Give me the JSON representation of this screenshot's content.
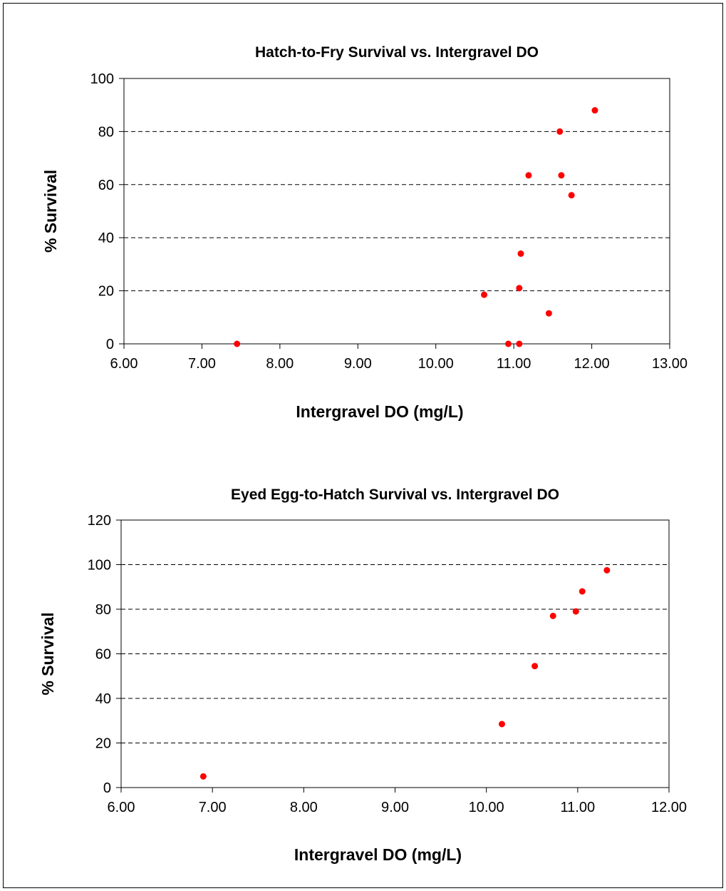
{
  "chart_data": [
    {
      "type": "scatter",
      "title": "Hatch-to-Fry Survival vs. Intergravel DO",
      "xlabel": "Intergravel DO (mg/L)",
      "ylabel": "% Survival",
      "xlim": [
        6.0,
        13.0
      ],
      "ylim": [
        0,
        100
      ],
      "xticks": [
        6,
        7,
        8,
        9,
        10,
        11,
        12,
        13
      ],
      "yticks": [
        0,
        20,
        40,
        60,
        80,
        100
      ],
      "xtick_labels": [
        "6.00",
        "7.00",
        "8.00",
        "9.00",
        "10.00",
        "11.00",
        "12.00",
        "13.00"
      ],
      "ytick_labels": [
        "0",
        "20",
        "40",
        "60",
        "80",
        "100"
      ],
      "grid": "horizontal dashed",
      "marker_color": "#ff0000",
      "points": [
        {
          "x": 7.45,
          "y": 0
        },
        {
          "x": 10.62,
          "y": 18.5
        },
        {
          "x": 10.93,
          "y": 0
        },
        {
          "x": 11.07,
          "y": 0
        },
        {
          "x": 11.07,
          "y": 21
        },
        {
          "x": 11.09,
          "y": 34
        },
        {
          "x": 11.19,
          "y": 63.5
        },
        {
          "x": 11.45,
          "y": 11.5
        },
        {
          "x": 11.59,
          "y": 80
        },
        {
          "x": 11.61,
          "y": 63.5
        },
        {
          "x": 11.74,
          "y": 56
        },
        {
          "x": 12.04,
          "y": 88
        }
      ]
    },
    {
      "type": "scatter",
      "title": "Eyed Egg-to-Hatch Survival vs. Intergravel DO",
      "xlabel": "Intergravel DO (mg/L)",
      "ylabel": "% Survival",
      "xlim": [
        6.0,
        12.0
      ],
      "ylim": [
        0,
        120
      ],
      "xticks": [
        6,
        7,
        8,
        9,
        10,
        11,
        12
      ],
      "yticks": [
        0,
        20,
        40,
        60,
        80,
        100,
        120
      ],
      "xtick_labels": [
        "6.00",
        "7.00",
        "8.00",
        "9.00",
        "10.00",
        "11.00",
        "12.00"
      ],
      "ytick_labels": [
        "0",
        "20",
        "40",
        "60",
        "80",
        "100",
        "120"
      ],
      "grid": "horizontal dashed",
      "marker_color": "#ff0000",
      "points": [
        {
          "x": 6.9,
          "y": 5
        },
        {
          "x": 10.17,
          "y": 28.5
        },
        {
          "x": 10.53,
          "y": 54.5
        },
        {
          "x": 10.73,
          "y": 77
        },
        {
          "x": 10.98,
          "y": 79
        },
        {
          "x": 11.05,
          "y": 88
        },
        {
          "x": 11.32,
          "y": 97.5
        }
      ]
    }
  ]
}
